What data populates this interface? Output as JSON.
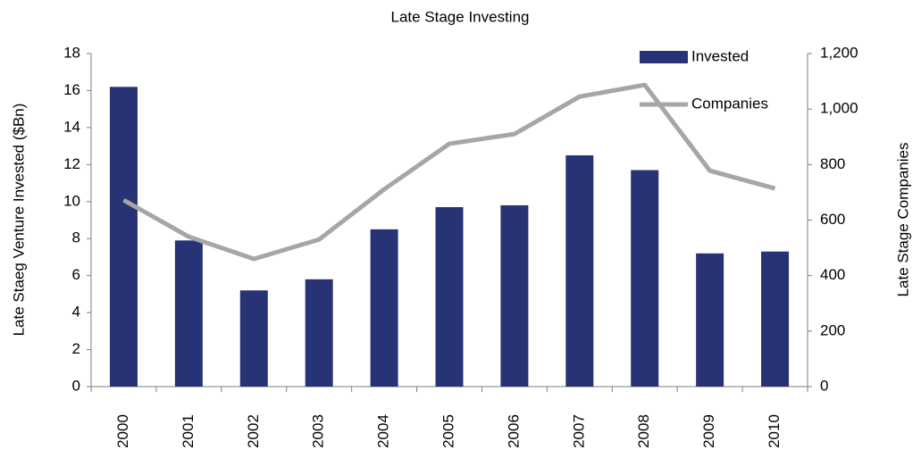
{
  "chart_data": {
    "type": "bar",
    "title": "Late Stage Investing",
    "y_label": "Late Staeg Venture Invested ($Bn)",
    "y2_label": "Late Stage Companies",
    "categories": [
      "2000",
      "2001",
      "2002",
      "2003",
      "2004",
      "2005",
      "2006",
      "2007",
      "2008",
      "2009",
      "2010"
    ],
    "series": [
      {
        "name": "Invested",
        "type": "bar",
        "color": "#283375",
        "values": [
          16.2,
          7.9,
          5.2,
          5.8,
          8.5,
          9.7,
          9.8,
          12.5,
          11.7,
          7.2,
          7.3
        ]
      },
      {
        "name": "Companies",
        "type": "line",
        "axis": "y2",
        "color": "#a6a6a6",
        "values": [
          672,
          540,
          460,
          530,
          711,
          875,
          910,
          1045,
          1087,
          778,
          714
        ]
      }
    ],
    "ylim": [
      0,
      18
    ],
    "yticks": [
      0,
      2,
      4,
      6,
      8,
      10,
      12,
      14,
      16,
      18
    ],
    "y2lim": [
      0,
      1200
    ],
    "y2ticks": [
      0,
      200,
      400,
      600,
      800,
      {
        "value": 1000,
        "label": "1,000"
      },
      {
        "value": 1200,
        "label": "1,200"
      }
    ],
    "grid": false,
    "legend": "top-right"
  }
}
